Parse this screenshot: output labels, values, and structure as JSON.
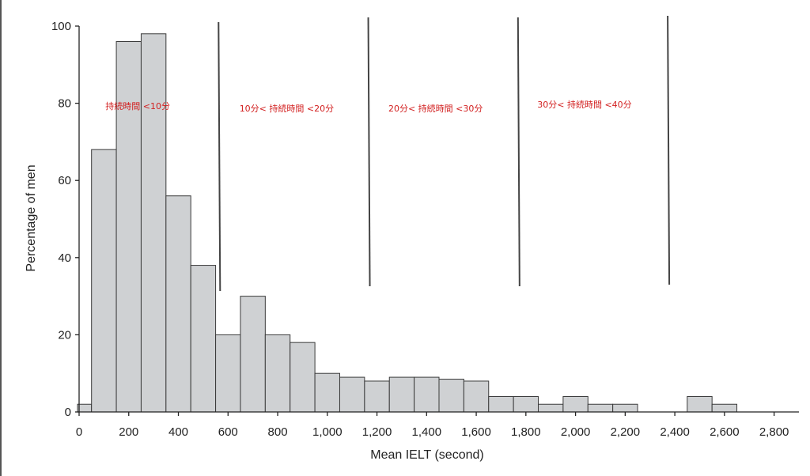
{
  "chart_data": {
    "type": "bar",
    "title": "",
    "xlabel": "Mean IELT (second)",
    "ylabel": "Percentage of men",
    "xlim": [
      0,
      2900
    ],
    "ylim": [
      0,
      100
    ],
    "bin_width": 100,
    "x_ticks": [
      {
        "value": 0,
        "label": "0"
      },
      {
        "value": 200,
        "label": "200"
      },
      {
        "value": 400,
        "label": "400"
      },
      {
        "value": 600,
        "label": "600"
      },
      {
        "value": 800,
        "label": "800"
      },
      {
        "value": 1000,
        "label": "1,000"
      },
      {
        "value": 1200,
        "label": "1,200"
      },
      {
        "value": 1400,
        "label": "1,400"
      },
      {
        "value": 1600,
        "label": "1,600"
      },
      {
        "value": 1800,
        "label": "1,800"
      },
      {
        "value": 2000,
        "label": "2,000"
      },
      {
        "value": 2200,
        "label": "2,200"
      },
      {
        "value": 2400,
        "label": "2,400"
      },
      {
        "value": 2600,
        "label": "2,600"
      },
      {
        "value": 2800,
        "label": "2,800"
      }
    ],
    "y_ticks": [
      {
        "value": 0,
        "label": "0"
      },
      {
        "value": 20,
        "label": "20"
      },
      {
        "value": 40,
        "label": "40"
      },
      {
        "value": 60,
        "label": "60"
      },
      {
        "value": 80,
        "label": "80"
      },
      {
        "value": 100,
        "label": "100"
      }
    ],
    "bins": [
      {
        "x0": -50,
        "x1": 50,
        "value": 2
      },
      {
        "x0": 50,
        "x1": 150,
        "value": 68
      },
      {
        "x0": 150,
        "x1": 250,
        "value": 96
      },
      {
        "x0": 250,
        "x1": 350,
        "value": 98
      },
      {
        "x0": 350,
        "x1": 450,
        "value": 56
      },
      {
        "x0": 450,
        "x1": 550,
        "value": 38
      },
      {
        "x0": 550,
        "x1": 650,
        "value": 20
      },
      {
        "x0": 650,
        "x1": 750,
        "value": 30
      },
      {
        "x0": 750,
        "x1": 850,
        "value": 20
      },
      {
        "x0": 850,
        "x1": 950,
        "value": 18
      },
      {
        "x0": 950,
        "x1": 1050,
        "value": 10
      },
      {
        "x0": 1050,
        "x1": 1150,
        "value": 9
      },
      {
        "x0": 1150,
        "x1": 1250,
        "value": 8
      },
      {
        "x0": 1250,
        "x1": 1350,
        "value": 9
      },
      {
        "x0": 1350,
        "x1": 1450,
        "value": 9
      },
      {
        "x0": 1450,
        "x1": 1550,
        "value": 8.5
      },
      {
        "x0": 1550,
        "x1": 1650,
        "value": 8
      },
      {
        "x0": 1650,
        "x1": 1750,
        "value": 4
      },
      {
        "x0": 1750,
        "x1": 1850,
        "value": 4
      },
      {
        "x0": 1850,
        "x1": 1950,
        "value": 2
      },
      {
        "x0": 1950,
        "x1": 2050,
        "value": 4
      },
      {
        "x0": 2050,
        "x1": 2150,
        "value": 2
      },
      {
        "x0": 2150,
        "x1": 2250,
        "value": 2
      },
      {
        "x0": 2450,
        "x1": 2550,
        "value": 4
      },
      {
        "x0": 2550,
        "x1": 2650,
        "value": 2
      }
    ],
    "dividers": [
      600,
      1200,
      1800,
      2400
    ],
    "annotations": [
      {
        "text": "持続時間 <10分",
        "x": 300
      },
      {
        "text": "10分< 持続時間 <20分",
        "x": 900
      },
      {
        "text": "20分< 持続時間 <30分",
        "x": 1500
      },
      {
        "text": "30分< 持続時間 <40分",
        "x": 2100
      }
    ],
    "annotation_y": 78,
    "grid": false,
    "legend": "none",
    "colors": {
      "bar_fill": "#cfd1d3",
      "bar_stroke": "#3a3a3a",
      "annotation": "#d21f1f",
      "divider": "#444444"
    }
  }
}
